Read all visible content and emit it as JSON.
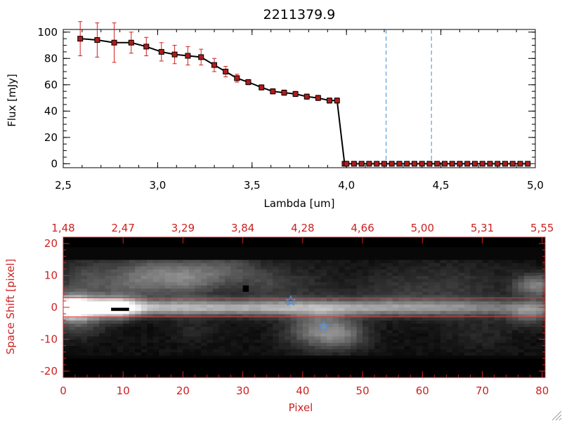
{
  "top_panel": {
    "title": "2211379.9",
    "xlabel": "Lambda [um]",
    "ylabel": "Flux [mJy]"
  },
  "bottom_panel": {
    "xlabel": "Pixel",
    "ylabel": "Space Shift [pixel]"
  },
  "colors": {
    "axis": "#000000",
    "bottom_axis": "#cc2222",
    "marker": "#b01c1c",
    "error_bar": "#d02020",
    "line": "#000000",
    "marker_line": "#000000",
    "dashed_line": "#3d8fd6",
    "star": "#4a90e2",
    "aperture_line": "#e03030",
    "background": "#ffffff"
  },
  "chart_data": [
    {
      "type": "line",
      "title": "2211379.9",
      "xlabel": "Lambda [um]",
      "ylabel": "Flux [mJy]",
      "xlim": [
        2.5,
        5.0
      ],
      "ylim": [
        -3,
        102
      ],
      "x_ticks": [
        "2.5",
        "3.0",
        "3.5",
        "4.0",
        "4.5",
        "5.0"
      ],
      "y_ticks": [
        "0",
        "20",
        "40",
        "60",
        "80",
        "100"
      ],
      "grid": false,
      "series": [
        {
          "x": [
            2.59,
            2.68,
            2.77,
            2.86,
            2.94,
            3.02,
            3.09,
            3.16,
            3.23,
            3.3,
            3.36,
            3.42,
            3.48,
            3.55,
            3.61,
            3.67,
            3.73,
            3.79,
            3.85,
            3.91,
            3.95,
            3.99
          ],
          "y": [
            95,
            94,
            92,
            92,
            89,
            85,
            83,
            82,
            81,
            75,
            70,
            65,
            62,
            58,
            55,
            54,
            53,
            51,
            50,
            48,
            48,
            0
          ],
          "yerr": [
            13,
            13,
            15,
            8,
            7,
            7,
            7,
            7,
            6,
            5,
            4,
            3,
            2,
            2,
            2,
            2,
            2,
            2,
            2,
            2,
            2,
            0
          ]
        },
        {
          "x": [
            4.0,
            4.04,
            4.08,
            4.12,
            4.16,
            4.2,
            4.24,
            4.28,
            4.32,
            4.36,
            4.4,
            4.44,
            4.48,
            4.52,
            4.56,
            4.6,
            4.64,
            4.68,
            4.72,
            4.76,
            4.8,
            4.84,
            4.88,
            4.92,
            4.96
          ],
          "y": [
            0,
            0,
            0,
            0,
            0,
            0,
            0,
            0,
            0,
            0,
            0,
            0,
            0,
            0,
            0,
            0,
            0,
            0,
            0,
            0,
            0,
            0,
            0,
            0,
            0
          ]
        }
      ],
      "vertical_dashed_lines": [
        4.21,
        4.45
      ],
      "horizontal_dashed_line": 0
    },
    {
      "type": "heatmap",
      "xlabel": "Pixel",
      "ylabel": "Space Shift [pixel]",
      "xlim": [
        0,
        80.5
      ],
      "ylim": [
        -22,
        22
      ],
      "x_ticks": [
        "0",
        "10",
        "20",
        "30",
        "40",
        "50",
        "60",
        "70",
        "80"
      ],
      "y_ticks": [
        "-20",
        "-10",
        "0",
        "10",
        "20"
      ],
      "top_axis_values": [
        1.48,
        2.47,
        3.29,
        3.84,
        4.28,
        4.66,
        5.0,
        5.31,
        5.55
      ],
      "top_ticks": [
        "1.48",
        "2.47",
        "3.29",
        "3.84",
        "4.28",
        "4.66",
        "5.00",
        "5.31",
        "5.55"
      ],
      "aperture_rows": [
        3,
        -3
      ],
      "sources": [
        {
          "x": 38,
          "y": 2
        },
        {
          "x": 43.5,
          "y": -6
        }
      ]
    }
  ]
}
